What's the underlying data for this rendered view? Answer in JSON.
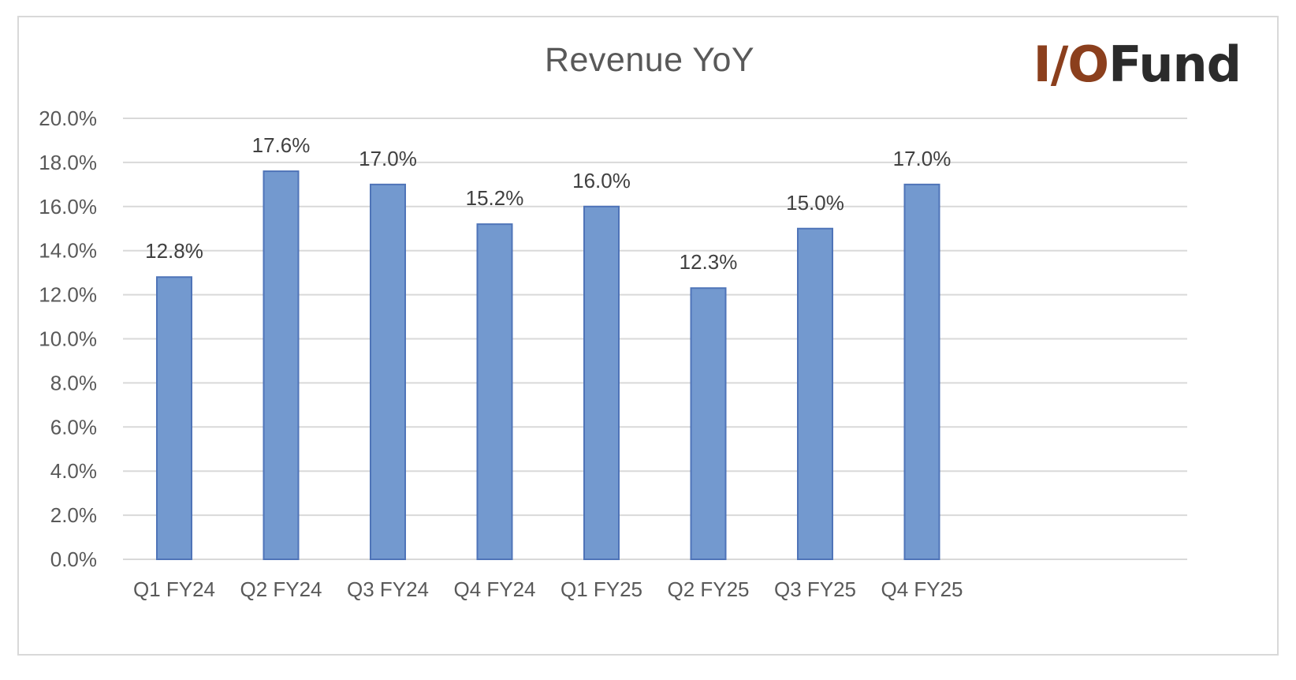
{
  "brand": {
    "logo_prefix": "I/O",
    "logo_suffix": "Fund",
    "colors": {
      "logo_prefix": "#8b3f1d",
      "logo_suffix": "#2b2b2b"
    }
  },
  "chart_data": {
    "type": "bar",
    "title": "Revenue YoY",
    "xlabel": "",
    "ylabel": "",
    "categories": [
      "Q1 FY24",
      "Q2 FY24",
      "Q3 FY24",
      "Q4 FY24",
      "Q1 FY25",
      "Q2 FY25",
      "Q3 FY25",
      "Q4 FY25"
    ],
    "values": [
      12.8,
      17.6,
      17.0,
      15.2,
      16.0,
      12.3,
      15.0,
      17.0
    ],
    "data_labels": [
      "12.8%",
      "17.6%",
      "17.0%",
      "15.2%",
      "16.0%",
      "12.3%",
      "15.0%",
      "17.0%"
    ],
    "ylim": [
      0,
      20
    ],
    "yticks": [
      0,
      2,
      4,
      6,
      8,
      10,
      12,
      14,
      16,
      18,
      20
    ],
    "ytick_labels": [
      "0.0%",
      "2.0%",
      "4.0%",
      "6.0%",
      "8.0%",
      "10.0%",
      "12.0%",
      "14.0%",
      "16.0%",
      "18.0%",
      "20.0%"
    ],
    "grid": true,
    "legend": "none",
    "colors": {
      "bar_fill": "#7399cf",
      "bar_stroke": "#4f74b8",
      "gridline": "#d9d9d9"
    }
  }
}
